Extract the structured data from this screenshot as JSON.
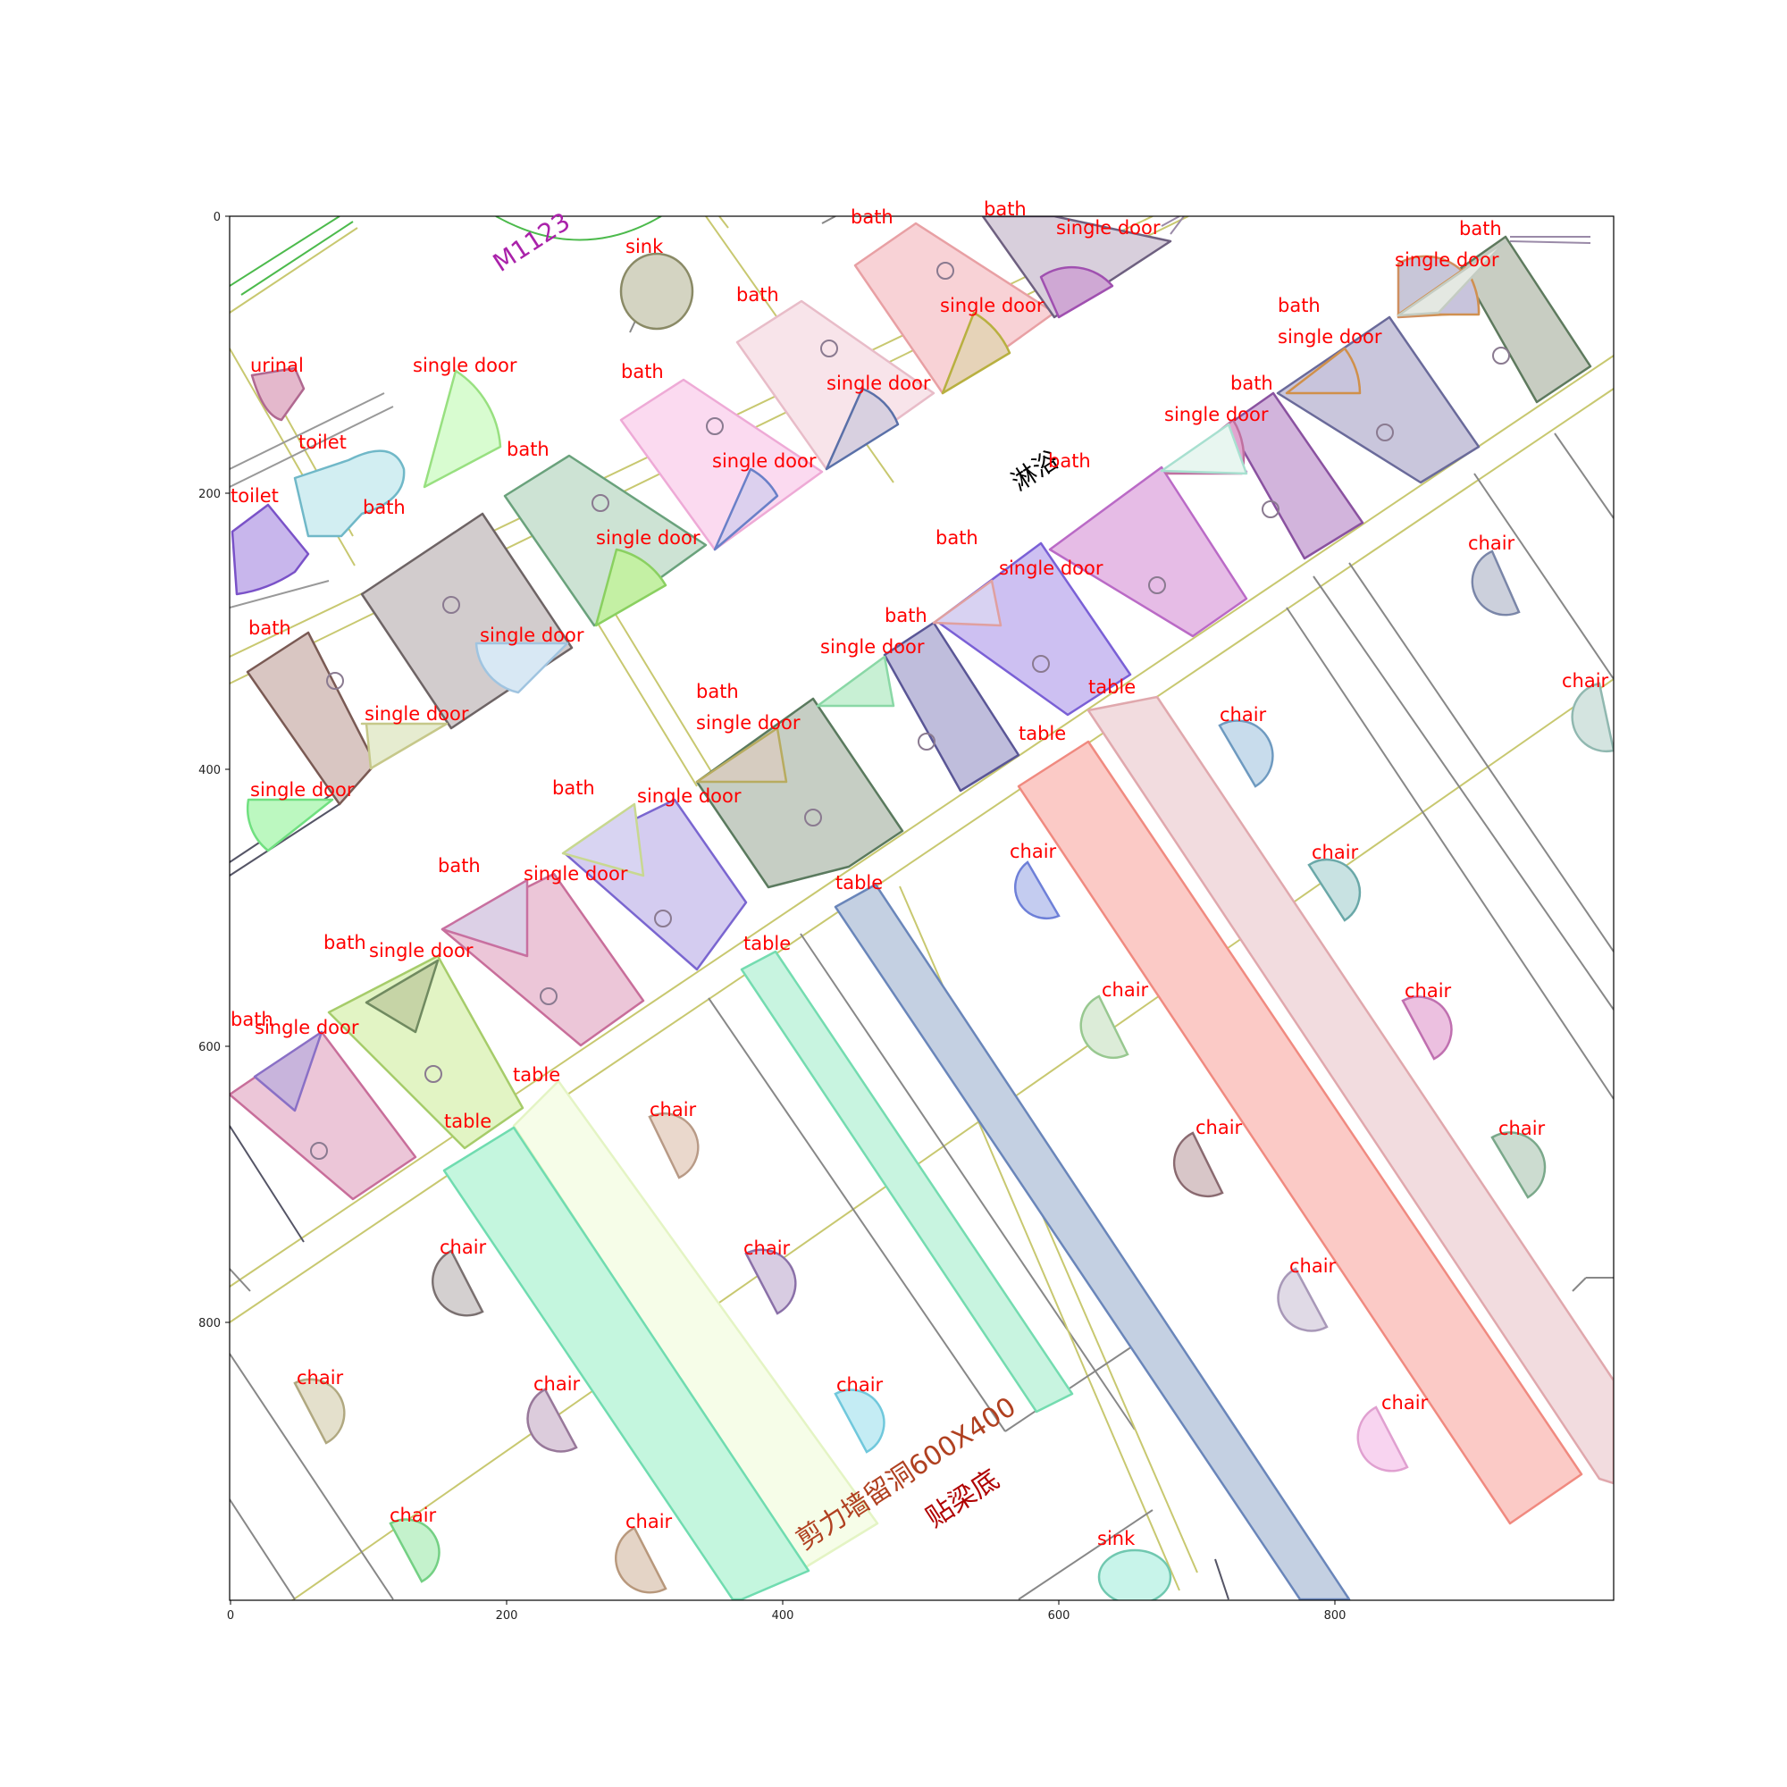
{
  "axes": {
    "x_ticks": [
      "0",
      "200",
      "400",
      "600",
      "800"
    ],
    "y_ticks": [
      "0",
      "200",
      "400",
      "600",
      "800"
    ]
  },
  "plan_text": {
    "door_tag": "M1123",
    "room_name": "淋浴",
    "note_line1": "剪力墙留洞600X400",
    "note_line2": "贴梁底"
  },
  "labels": [
    {
      "t": "bath"
    },
    {
      "t": "bath"
    },
    {
      "t": "single door"
    },
    {
      "t": "bath"
    },
    {
      "t": "single door"
    },
    {
      "t": "sink"
    },
    {
      "t": "bath"
    },
    {
      "t": "single door"
    },
    {
      "t": "bath"
    },
    {
      "t": "single door"
    },
    {
      "t": "urinal"
    },
    {
      "t": "single door"
    },
    {
      "t": "bath"
    },
    {
      "t": "single door"
    },
    {
      "t": "bath"
    },
    {
      "t": "single door"
    },
    {
      "t": "toilet"
    },
    {
      "t": "bath"
    },
    {
      "t": "single door"
    },
    {
      "t": "bath"
    },
    {
      "t": "toilet"
    },
    {
      "t": "bath"
    },
    {
      "t": "bath"
    },
    {
      "t": "single door"
    },
    {
      "t": "chair"
    },
    {
      "t": "single door"
    },
    {
      "t": "bath"
    },
    {
      "t": "single door"
    },
    {
      "t": "bath"
    },
    {
      "t": "single door"
    },
    {
      "t": "bath"
    },
    {
      "t": "single door"
    },
    {
      "t": "table"
    },
    {
      "t": "chair"
    },
    {
      "t": "single door"
    },
    {
      "t": "chair"
    },
    {
      "t": "table"
    },
    {
      "t": "single door"
    },
    {
      "t": "bath"
    },
    {
      "t": "single door"
    },
    {
      "t": "bath"
    },
    {
      "t": "chair"
    },
    {
      "t": "chair"
    },
    {
      "t": "single door"
    },
    {
      "t": "table"
    },
    {
      "t": "bath"
    },
    {
      "t": "single door"
    },
    {
      "t": "table"
    },
    {
      "t": "chair"
    },
    {
      "t": "chair"
    },
    {
      "t": "bath"
    },
    {
      "t": "single door"
    },
    {
      "t": "table"
    },
    {
      "t": "table"
    },
    {
      "t": "chair"
    },
    {
      "t": "chair"
    },
    {
      "t": "chair"
    },
    {
      "t": "chair"
    },
    {
      "t": "chair"
    },
    {
      "t": "chair"
    },
    {
      "t": "chair"
    },
    {
      "t": "chair"
    },
    {
      "t": "chair"
    },
    {
      "t": "chair"
    },
    {
      "t": "chair"
    },
    {
      "t": "chair"
    },
    {
      "t": "sink"
    }
  ]
}
